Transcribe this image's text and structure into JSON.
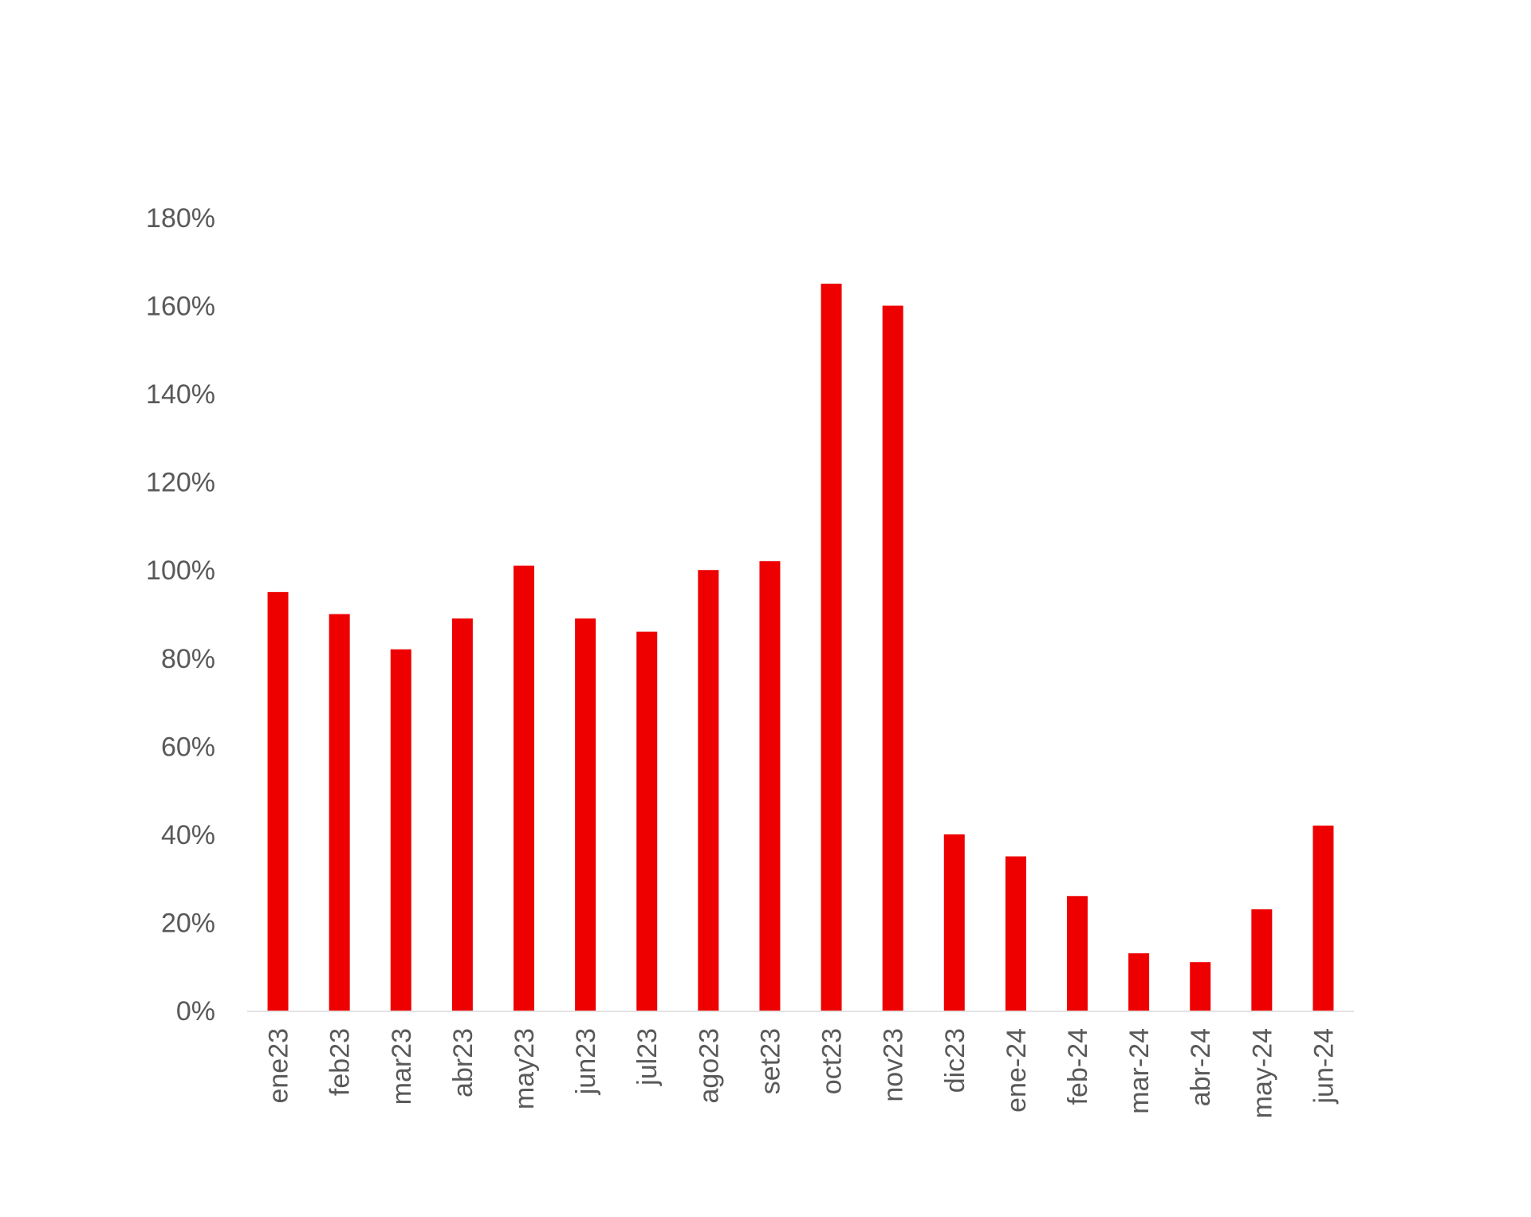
{
  "chart_data": {
    "type": "bar",
    "categories": [
      "ene23",
      "feb23",
      "mar23",
      "abr23",
      "may23",
      "jun23",
      "jul23",
      "ago23",
      "set23",
      "oct23",
      "nov23",
      "dic23",
      "ene-24",
      "feb-24",
      "mar-24",
      "abr-24",
      "may-24",
      "jun-24"
    ],
    "values": [
      95,
      90,
      82,
      89,
      101,
      89,
      86,
      100,
      102,
      165,
      160,
      40,
      35,
      26,
      13,
      11,
      23,
      42
    ],
    "title": "",
    "xlabel": "",
    "ylabel": "",
    "ylim": [
      0,
      180
    ],
    "yticks": [
      0,
      20,
      40,
      60,
      80,
      100,
      120,
      140,
      160,
      180
    ],
    "ytick_labels": [
      "0%",
      "20%",
      "40%",
      "60%",
      "80%",
      "100%",
      "120%",
      "140%",
      "160%",
      "180%"
    ],
    "grid": false,
    "legend": "none",
    "bar_color": "#ee0000",
    "axis_color": "#e3e3e3",
    "label_color": "#595959"
  }
}
